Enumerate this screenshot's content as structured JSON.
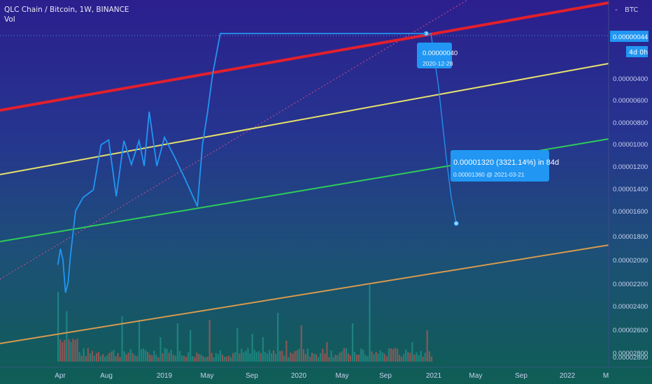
{
  "header": {
    "symbol": "QLC Chain / Bitcoin, 1W, BINANCE",
    "indicator": "Vol"
  },
  "axis": {
    "currency": "BTC"
  },
  "price_badge": {
    "value": "0.00000044",
    "countdown": "4d 0h"
  },
  "callout_top": {
    "value": "0.00000040",
    "date": "2020-12-28"
  },
  "callout_bottom": {
    "line1": "0.00001320 (3321.14%) in 84d",
    "line2": "0.00001360 @ 2021-03-21"
  },
  "colors": {
    "price": "#2196f3",
    "red": "#e2202c",
    "yellow": "#e8e26a",
    "green": "#2ecc5a",
    "orange": "#d79a4e",
    "vol_up": "#26a69a",
    "vol_down": "#ef5350"
  },
  "chart_data": {
    "type": "line",
    "scale": "log",
    "inverted": true,
    "y_ticks": [
      "0.00000400",
      "0.00000600",
      "0.00000800",
      "0.00001000",
      "0.00001200",
      "0.00001400",
      "0.00001600",
      "0.00001800",
      "0.00002000",
      "0.00002200",
      "0.00002400",
      "0.00002600",
      "0.00002800"
    ],
    "x_ticks": [
      "Apr",
      "Aug",
      "2019",
      "May",
      "Sep",
      "2020",
      "May",
      "Sep",
      "2021",
      "May",
      "Sep",
      "2022",
      "M"
    ],
    "series": [
      {
        "dates": [
          "2018-03-18",
          "2018-03-25",
          "2018-04-01",
          "2018-04-08",
          "2018-04-15",
          "2018-04-22",
          "2018-05-06",
          "2018-05-27",
          "2018-06-24",
          "2018-07-15",
          "2018-08-05",
          "2018-08-26",
          "2018-09-16",
          "2018-10-07",
          "2018-10-28",
          "2018-11-11",
          "2018-11-25",
          "2018-12-16",
          "2019-01-06",
          "2019-02-03",
          "2019-03-03",
          "2019-04-07",
          "2019-04-21",
          "2019-05-05",
          "2019-05-19",
          "2019-06-09",
          "2019-06-30",
          "2019-07-21",
          "2019-08-11",
          "2019-09-01",
          "2019-10-06",
          "2019-11-10",
          "2019-12-15",
          "2020-01-26",
          "2020-03-08",
          "2020-04-19",
          "2020-05-31",
          "2020-07-12",
          "2020-08-23",
          "2020-09-20",
          "2020-10-18",
          "2020-11-15",
          "2020-12-06",
          "2020-12-28"
        ],
        "values": [
          2.05e-05,
          1.75e-05,
          1.95e-05,
          2.7e-05,
          2.45e-05,
          1.85e-05,
          1.2e-05,
          1.05e-05,
          9.75e-06,
          6.25e-06,
          5.95e-06,
          1.04e-05,
          6e-06,
          7.6e-06,
          6e-06,
          7.7e-06,
          4.5e-06,
          7.7e-06,
          5.8e-06,
          7.05e-06,
          8.7e-06,
          1.15e-05,
          6.2e-06,
          4.5e-06,
          3.1e-06,
          1.6e-06,
          1.2e-06,
          1.5e-06,
          1.2e-06,
          1.5e-06,
          1.3e-06,
          1.5e-06,
          1.4e-06,
          1.5e-06,
          1.35e-06,
          1.3e-06,
          1.7e-06,
          2e-06,
          1.4e-06,
          1.2e-06,
          1.1e-06,
          9e-07,
          6.5e-07,
          4e-07
        ]
      },
      {
        "dates": [
          "2020-12-28",
          "2021-01-10",
          "2021-01-31",
          "2021-02-21",
          "2021-03-07",
          "2021-03-21"
        ],
        "values": [
          4e-07,
          1.2e-06,
          3.5e-06,
          7e-06,
          1.05e-05,
          1.36e-05
        ]
      }
    ]
  }
}
